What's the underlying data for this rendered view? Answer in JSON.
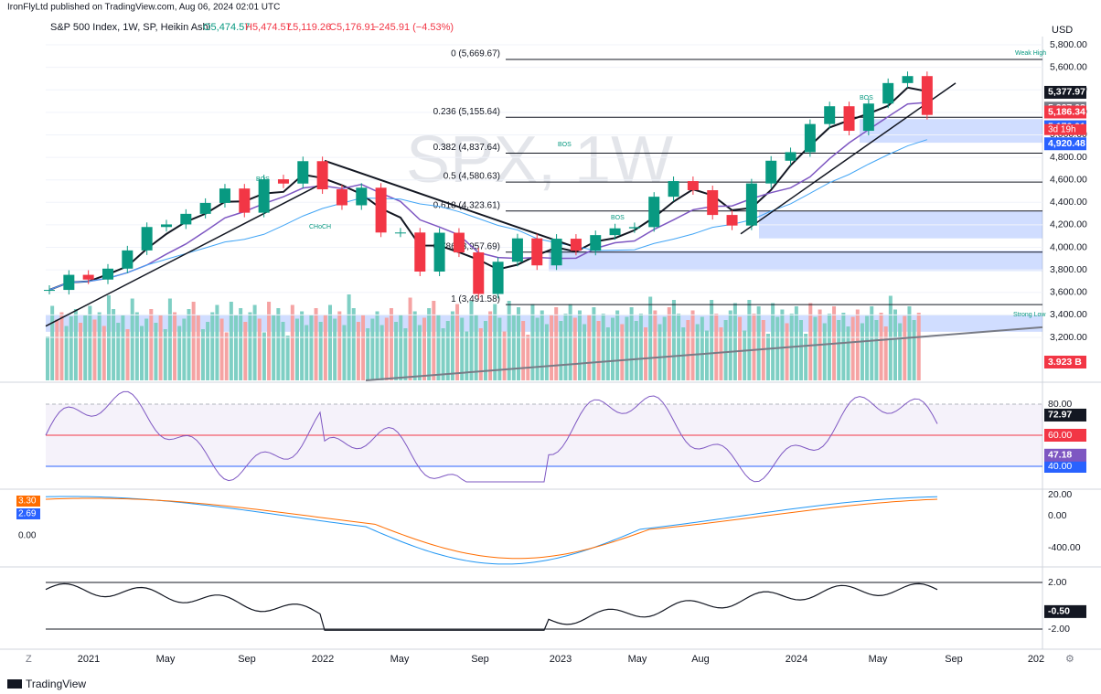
{
  "header": {
    "publisher": "IronFlyLtd published on TradingView.com, Aug 06, 2024 02:01 UTC",
    "symbol": "S&P 500 Index, 1W, SP, Heikin Ashi",
    "open": "O5,474.57",
    "high": "H5,474.57",
    "low": "L5,119.26",
    "close": "C5,176.91",
    "change": "−245.91 (−4.53%)"
  },
  "watermark": "SPX, 1W",
  "main_pane": {
    "currency": "USD",
    "closes": [
      3622,
      3756,
      3714,
      3811,
      3973,
      4181,
      4204,
      4298,
      4395,
      4523,
      4308,
      4605,
      4567,
      4766,
      4516,
      4374,
      4530,
      4132,
      4132,
      3785,
      4130,
      3955,
      3586,
      3872,
      4080,
      3840,
      4077,
      3970,
      4109,
      4169,
      4180,
      4450,
      4589,
      4508,
      4288,
      4194,
      4568,
      4770,
      4846,
      5096,
      5254,
      5036,
      5278,
      5460,
      5522,
      5177
    ],
    "yticks": [
      {
        "value": 3200,
        "label": "3,200.00"
      },
      {
        "value": 3400,
        "label": "3,400.00"
      },
      {
        "value": 3600,
        "label": "3,600.00"
      },
      {
        "value": 3800,
        "label": "3,800.00"
      },
      {
        "value": 4000,
        "label": "4,000.00"
      },
      {
        "value": 4200,
        "label": "4,200.00"
      },
      {
        "value": 4400,
        "label": "4,400.00"
      },
      {
        "value": 4600,
        "label": "4,600.00"
      },
      {
        "value": 4800,
        "label": "4,800.00"
      },
      {
        "value": 5000,
        "label": "5,000.00"
      },
      {
        "value": 5200,
        "label": "5,200.00"
      },
      {
        "value": 5400,
        "label": "5,400.00"
      },
      {
        "value": 5600,
        "label": "5,600.00"
      },
      {
        "value": 5800,
        "label": "5,800.00"
      }
    ],
    "fib_levels": [
      {
        "value": 5669.67,
        "label": "0 (5,669.67)"
      },
      {
        "value": 5155.64,
        "label": "0.236 (5,155.64)"
      },
      {
        "value": 4837.64,
        "label": "0.382 (4,837.64)"
      },
      {
        "value": 4580.63,
        "label": "0.5 (4,580.63)"
      },
      {
        "value": 4323.61,
        "label": "0.618 (4,323.61)"
      },
      {
        "value": 3957.69,
        "label": "0.786 (3,957.69)"
      },
      {
        "value": 3491.58,
        "label": "1 (3,491.58)"
      }
    ],
    "price_tags": [
      {
        "value": 5377.97,
        "label": "5,377.97",
        "color": "#131722"
      },
      {
        "value": 5237.08,
        "label": "5,237.08",
        "color": "#787b86"
      },
      {
        "value": 5186.34,
        "label": "5,186.34",
        "color": "#f23645"
      },
      {
        "value": 5176.91,
        "label": "5,176.91",
        "color": "#f23645"
      },
      {
        "value": 5176.91,
        "label": "5,176.91",
        "color": "#2962ff"
      },
      {
        "value": 4920.48,
        "label": "4,920.48",
        "color": "#2962ff"
      }
    ],
    "countdown": "3d 19h",
    "volume_tag": "3.923 B",
    "bos": "BOS",
    "choch": "CHoCH",
    "weak_high": "Weak High",
    "strong_low": "Strong Low"
  },
  "time_axis": [
    "2021",
    "May",
    "Sep",
    "2022",
    "May",
    "Sep",
    "2023",
    "May",
    "Aug",
    "2024",
    "May",
    "Sep",
    "202"
  ],
  "rsi_pane": {
    "ticks": [
      {
        "value": 80,
        "label": "80.00"
      },
      {
        "value": 60,
        "label": "60.00"
      },
      {
        "value": 40,
        "label": "40.00"
      }
    ],
    "tags": [
      {
        "value": 72.97,
        "label": "72.97",
        "color": "#131722"
      },
      {
        "value": 47.18,
        "label": "47.18",
        "color": "#7e57c2"
      }
    ]
  },
  "macd_pane": {
    "ticks": [
      "20.00",
      "0.00",
      "-400.00"
    ],
    "left_tags": [
      "3.30",
      "2.69",
      "0.00"
    ]
  },
  "osc_pane": {
    "ticks": [
      {
        "value": 2,
        "label": "2.00"
      },
      {
        "value": -2,
        "label": "-2.00"
      }
    ],
    "tag": {
      "value": -0.5,
      "label": "-0.50"
    }
  },
  "footer": "TradingView"
}
